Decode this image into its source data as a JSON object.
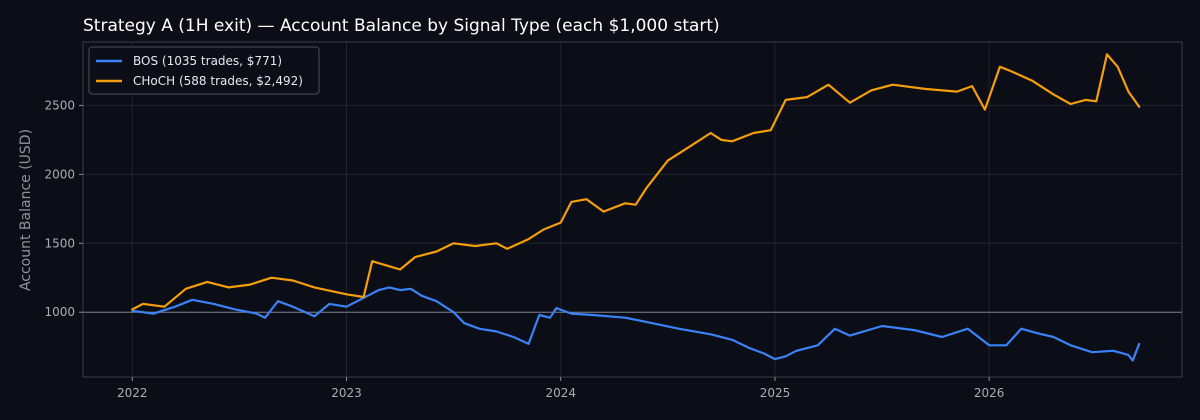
{
  "chart_data": {
    "type": "line",
    "title": "Strategy A (1H exit) — Account Balance by Signal Type (each $1,000 start)",
    "xlabel": "",
    "ylabel": "Account Balance (USD)",
    "xlim": [
      2021.77,
      2026.9
    ],
    "ylim": [
      530,
      2960
    ],
    "xticks": [
      2022,
      2023,
      2024,
      2025,
      2026
    ],
    "xtick_labels": [
      "2022",
      "2023",
      "2024",
      "2025",
      "2026"
    ],
    "yticks": [
      1000,
      1500,
      2000,
      2500
    ],
    "ytick_labels": [
      "1000",
      "1500",
      "2000",
      "2500"
    ],
    "reference_line": 1000,
    "grid": true,
    "legend_position": "top-left",
    "colors": {
      "background": "#0b0e17",
      "grid": "#20242f",
      "axis": "#3a3f4b",
      "reference": "#7a7f8a"
    },
    "series": [
      {
        "name": "BOS (1035 trades, $771)",
        "color": "#3b82f6",
        "x": [
          2022.0,
          2022.1,
          2022.2,
          2022.28,
          2022.38,
          2022.48,
          2022.58,
          2022.62,
          2022.68,
          2022.75,
          2022.85,
          2022.92,
          2023.0,
          2023.1,
          2023.15,
          2023.2,
          2023.25,
          2023.3,
          2023.35,
          2023.42,
          2023.5,
          2023.55,
          2023.62,
          2023.7,
          2023.78,
          2023.85,
          2023.9,
          2023.95,
          2023.98,
          2024.05,
          2024.15,
          2024.3,
          2024.4,
          2024.55,
          2024.7,
          2024.8,
          2024.88,
          2024.95,
          2025.0,
          2025.05,
          2025.1,
          2025.2,
          2025.28,
          2025.35,
          2025.5,
          2025.65,
          2025.78,
          2025.9,
          2026.0,
          2026.08,
          2026.15,
          2026.22,
          2026.3,
          2026.38,
          2026.48,
          2026.58,
          2026.65,
          2026.67,
          2026.7
        ],
        "values": [
          1010,
          990,
          1040,
          1090,
          1060,
          1020,
          990,
          960,
          1080,
          1040,
          970,
          1060,
          1040,
          1120,
          1160,
          1180,
          1160,
          1170,
          1120,
          1080,
          1000,
          920,
          880,
          860,
          820,
          770,
          980,
          960,
          1030,
          990,
          980,
          960,
          930,
          880,
          840,
          800,
          740,
          700,
          660,
          680,
          720,
          760,
          880,
          830,
          900,
          870,
          820,
          880,
          760,
          760,
          880,
          850,
          820,
          760,
          710,
          720,
          690,
          650,
          770
        ]
      },
      {
        "name": "CHoCH (588 trades, $2,492)",
        "color": "#f59e0b",
        "x": [
          2022.0,
          2022.05,
          2022.15,
          2022.25,
          2022.35,
          2022.45,
          2022.55,
          2022.65,
          2022.75,
          2022.85,
          2023.0,
          2023.08,
          2023.12,
          2023.25,
          2023.32,
          2023.42,
          2023.5,
          2023.6,
          2023.7,
          2023.75,
          2023.85,
          2023.92,
          2024.0,
          2024.05,
          2024.12,
          2024.2,
          2024.3,
          2024.35,
          2024.4,
          2024.5,
          2024.55,
          2024.6,
          2024.7,
          2024.75,
          2024.8,
          2024.9,
          2024.98,
          2025.05,
          2025.15,
          2025.25,
          2025.35,
          2025.45,
          2025.55,
          2025.7,
          2025.85,
          2025.92,
          2025.98,
          2026.05,
          2026.1,
          2026.2,
          2026.3,
          2026.38,
          2026.45,
          2026.5,
          2026.55,
          2026.6,
          2026.65,
          2026.7
        ],
        "values": [
          1020,
          1060,
          1040,
          1170,
          1220,
          1180,
          1200,
          1250,
          1230,
          1180,
          1130,
          1110,
          1370,
          1310,
          1400,
          1440,
          1500,
          1480,
          1500,
          1460,
          1530,
          1600,
          1650,
          1800,
          1820,
          1730,
          1790,
          1780,
          1900,
          2100,
          2150,
          2200,
          2300,
          2250,
          2240,
          2300,
          2320,
          2540,
          2560,
          2650,
          2520,
          2610,
          2650,
          2620,
          2600,
          2640,
          2470,
          2780,
          2750,
          2680,
          2580,
          2510,
          2540,
          2530,
          2870,
          2780,
          2600,
          2490
        ]
      }
    ]
  }
}
